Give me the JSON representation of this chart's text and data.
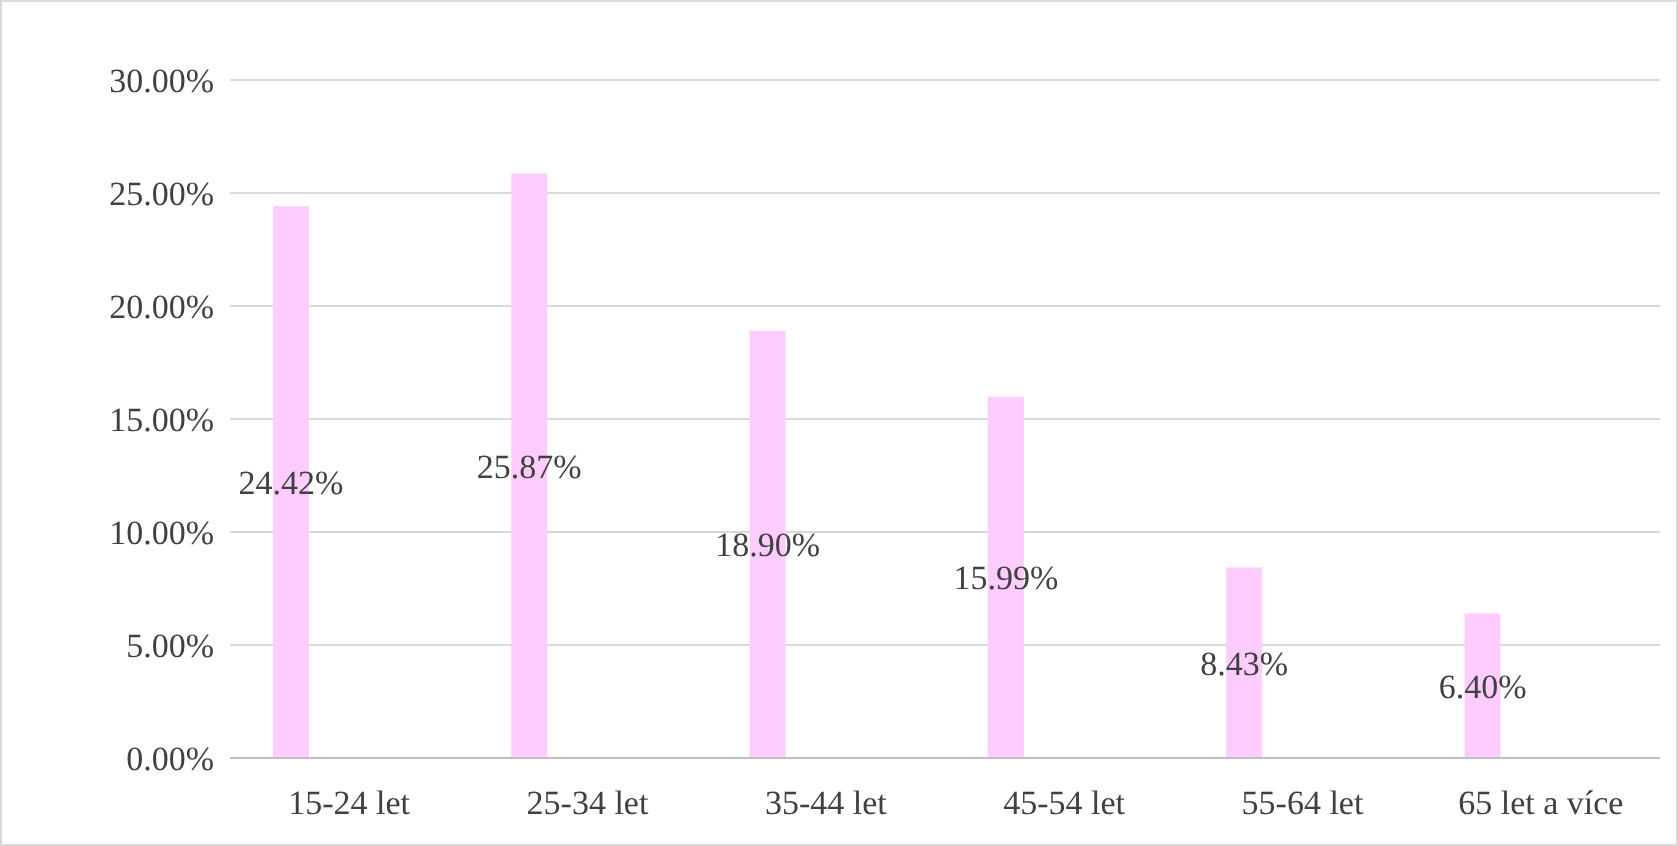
{
  "chart_data": {
    "type": "bar",
    "categories": [
      "15-24 let",
      "25-34 let",
      "35-44 let",
      "45-54 let",
      "55-64 let",
      "65 let a více"
    ],
    "values": [
      24.42,
      25.87,
      18.9,
      15.99,
      8.43,
      6.4
    ],
    "color": "#ffccff",
    "value_labels": [
      "24.42%",
      "25.87%",
      "18.90%",
      "15.99%",
      "8.43%",
      "6.40%"
    ],
    "ylim": [
      0,
      30
    ],
    "yticks": [
      {
        "value": 0,
        "label": "0.00%"
      },
      {
        "value": 5,
        "label": "5.00%"
      },
      {
        "value": 10,
        "label": "10.00%"
      },
      {
        "value": 15,
        "label": "15.00%"
      },
      {
        "value": 20,
        "label": "20.00%"
      },
      {
        "value": 25,
        "label": "25.00%"
      },
      {
        "value": 30,
        "label": "30.00%"
      }
    ],
    "grid": "y"
  }
}
